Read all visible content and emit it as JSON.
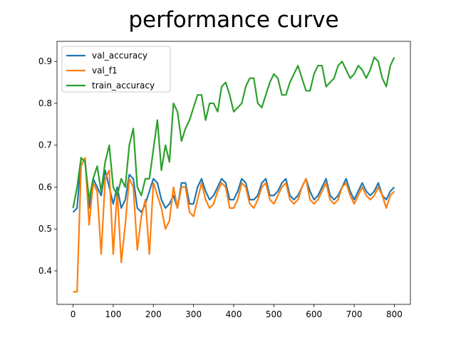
{
  "chart_data": {
    "type": "line",
    "title": "performance curve",
    "x": [
      0,
      10,
      20,
      30,
      40,
      50,
      60,
      70,
      80,
      90,
      100,
      110,
      120,
      130,
      140,
      150,
      160,
      170,
      180,
      190,
      200,
      210,
      220,
      230,
      240,
      250,
      260,
      270,
      280,
      290,
      300,
      310,
      320,
      330,
      340,
      350,
      360,
      370,
      380,
      390,
      400,
      410,
      420,
      430,
      440,
      450,
      460,
      470,
      480,
      490,
      500,
      510,
      520,
      530,
      540,
      550,
      560,
      570,
      580,
      590,
      600,
      610,
      620,
      630,
      640,
      650,
      660,
      670,
      680,
      690,
      700,
      710,
      720,
      730,
      740,
      750,
      760,
      770,
      780,
      790,
      800
    ],
    "series": [
      {
        "name": "val_accuracy",
        "color": "#1f77b4",
        "values": [
          0.54,
          0.55,
          0.67,
          0.66,
          0.55,
          0.62,
          0.6,
          0.58,
          0.64,
          0.6,
          0.56,
          0.6,
          0.55,
          0.57,
          0.63,
          0.62,
          0.55,
          0.54,
          0.56,
          0.59,
          0.62,
          0.61,
          0.57,
          0.55,
          0.56,
          0.58,
          0.55,
          0.61,
          0.61,
          0.56,
          0.56,
          0.6,
          0.62,
          0.59,
          0.57,
          0.58,
          0.6,
          0.62,
          0.61,
          0.57,
          0.57,
          0.59,
          0.62,
          0.61,
          0.57,
          0.57,
          0.58,
          0.61,
          0.62,
          0.58,
          0.58,
          0.59,
          0.61,
          0.62,
          0.58,
          0.57,
          0.58,
          0.6,
          0.62,
          0.59,
          0.57,
          0.58,
          0.6,
          0.62,
          0.58,
          0.57,
          0.58,
          0.6,
          0.62,
          0.59,
          0.57,
          0.59,
          0.61,
          0.59,
          0.58,
          0.59,
          0.61,
          0.58,
          0.57,
          0.59,
          0.6
        ]
      },
      {
        "name": "val_f1",
        "color": "#ff7f0e",
        "values": [
          0.35,
          0.35,
          0.65,
          0.67,
          0.51,
          0.61,
          0.59,
          0.44,
          0.62,
          0.64,
          0.44,
          0.59,
          0.42,
          0.51,
          0.62,
          0.6,
          0.45,
          0.53,
          0.57,
          0.44,
          0.61,
          0.58,
          0.55,
          0.5,
          0.52,
          0.6,
          0.55,
          0.6,
          0.6,
          0.54,
          0.53,
          0.57,
          0.61,
          0.57,
          0.55,
          0.56,
          0.59,
          0.61,
          0.6,
          0.55,
          0.55,
          0.57,
          0.61,
          0.6,
          0.56,
          0.55,
          0.57,
          0.6,
          0.61,
          0.57,
          0.56,
          0.58,
          0.6,
          0.61,
          0.57,
          0.56,
          0.57,
          0.6,
          0.62,
          0.57,
          0.56,
          0.57,
          0.59,
          0.61,
          0.57,
          0.56,
          0.57,
          0.6,
          0.61,
          0.58,
          0.56,
          0.58,
          0.6,
          0.58,
          0.57,
          0.58,
          0.6,
          0.58,
          0.55,
          0.58,
          0.59
        ]
      },
      {
        "name": "train_accuracy",
        "color": "#2ca02c",
        "values": [
          0.55,
          0.6,
          0.67,
          0.66,
          0.57,
          0.62,
          0.65,
          0.59,
          0.66,
          0.7,
          0.6,
          0.58,
          0.62,
          0.6,
          0.7,
          0.74,
          0.6,
          0.58,
          0.62,
          0.62,
          0.69,
          0.76,
          0.64,
          0.7,
          0.66,
          0.8,
          0.78,
          0.71,
          0.74,
          0.76,
          0.79,
          0.82,
          0.82,
          0.76,
          0.8,
          0.8,
          0.78,
          0.84,
          0.85,
          0.82,
          0.78,
          0.79,
          0.8,
          0.84,
          0.86,
          0.86,
          0.8,
          0.79,
          0.82,
          0.85,
          0.87,
          0.86,
          0.82,
          0.82,
          0.85,
          0.87,
          0.89,
          0.86,
          0.83,
          0.83,
          0.87,
          0.89,
          0.89,
          0.84,
          0.85,
          0.86,
          0.89,
          0.9,
          0.88,
          0.86,
          0.87,
          0.89,
          0.88,
          0.86,
          0.88,
          0.91,
          0.9,
          0.86,
          0.84,
          0.89,
          0.91
        ]
      }
    ],
    "xlim": [
      -40,
      840
    ],
    "ylim": [
      0.32,
      0.948
    ],
    "xticks": [
      0,
      100,
      200,
      300,
      400,
      500,
      600,
      700,
      800
    ],
    "yticks": [
      0.4,
      0.5,
      0.6,
      0.7,
      0.8,
      0.9
    ],
    "legend": "upper left"
  }
}
